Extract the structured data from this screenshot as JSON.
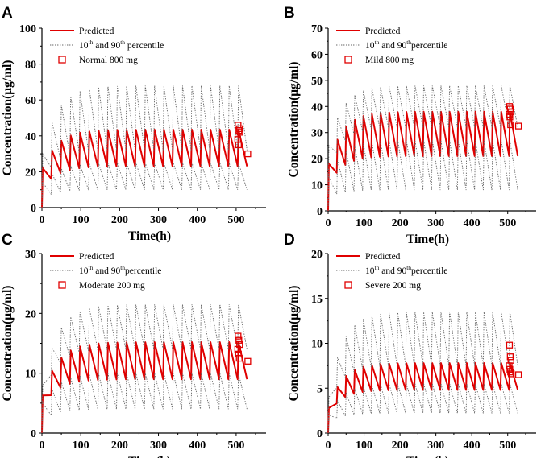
{
  "chart_data": [
    {
      "panel": "A",
      "type": "line",
      "title": "",
      "xlabel": "Time(h)",
      "ylabel": "Concentration(μg/ml)",
      "xlim": [
        0,
        550
      ],
      "ylim": [
        0,
        100
      ],
      "xticks": [
        0,
        100,
        200,
        300,
        400,
        500
      ],
      "yticks": [
        0,
        20,
        40,
        60,
        80,
        100
      ],
      "dosing_interval_h": 24,
      "doses": 22,
      "legend": {
        "predicted": "Predicted",
        "pct_pre": "10",
        "pct_mid": " and 90",
        "pct_post": " percentile",
        "observed": "Normal 800 mg"
      },
      "series": [
        {
          "name": "Predicted",
          "steady_peak": 43.5,
          "steady_trough": 23,
          "first_peak": 22,
          "first_trough": 10
        },
        {
          "name": "10th percentile",
          "steady_peak": 25,
          "steady_trough": 10,
          "first_peak": 14,
          "first_trough": 5
        },
        {
          "name": "90th percentile",
          "steady_peak": 68,
          "steady_trough": 32,
          "first_peak": 30,
          "first_trough": 14
        }
      ],
      "observed": [
        [
          505,
          46
        ],
        [
          507,
          43
        ],
        [
          509,
          44
        ],
        [
          504,
          38
        ],
        [
          506,
          35
        ],
        [
          510,
          42
        ],
        [
          530,
          30
        ]
      ]
    },
    {
      "panel": "B",
      "type": "line",
      "title": "",
      "xlabel": "Time(h)",
      "ylabel": "Concentration(μg/ml)",
      "xlim": [
        0,
        550
      ],
      "ylim": [
        0,
        70
      ],
      "xticks": [
        0,
        100,
        200,
        300,
        400,
        500
      ],
      "yticks": [
        0,
        10,
        20,
        30,
        40,
        50,
        60,
        70
      ],
      "dosing_interval_h": 24,
      "doses": 22,
      "legend": {
        "predicted": "Predicted",
        "pct_pre": "10",
        "pct_mid": " and 90",
        "pct_post": "percentile",
        "observed": "Mild 800 mg"
      },
      "series": [
        {
          "name": "Predicted",
          "steady_peak": 38,
          "steady_trough": 21,
          "first_peak": 18,
          "first_trough": 9
        },
        {
          "name": "10th percentile",
          "steady_peak": 27,
          "steady_trough": 8,
          "first_peak": 13,
          "first_trough": 5
        },
        {
          "name": "90th percentile",
          "steady_peak": 48,
          "steady_trough": 32,
          "first_peak": 25,
          "first_trough": 14
        }
      ],
      "observed": [
        [
          505,
          40
        ],
        [
          507,
          39
        ],
        [
          509,
          38
        ],
        [
          504,
          37
        ],
        [
          506,
          36
        ],
        [
          508,
          33
        ],
        [
          530,
          32.5
        ]
      ]
    },
    {
      "panel": "C",
      "type": "line",
      "title": "",
      "xlabel": "Time(h)",
      "ylabel": "Concentration(μg/ml)",
      "xlim": [
        0,
        550
      ],
      "ylim": [
        0,
        30
      ],
      "xticks": [
        0,
        100,
        200,
        300,
        400,
        500
      ],
      "yticks": [
        0,
        10,
        20,
        30
      ],
      "dosing_interval_h": 24,
      "doses": 22,
      "legend": {
        "predicted": "Predicted",
        "pct_pre": "10",
        "pct_mid": " and 90",
        "pct_post": "percentile",
        "observed": "Moderate 200 mg"
      },
      "series": [
        {
          "name": "Predicted",
          "steady_peak": 15.2,
          "steady_trough": 9,
          "first_peak": 6.3,
          "first_trough": 4
        },
        {
          "name": "10th percentile",
          "steady_peak": 10,
          "steady_trough": 4,
          "first_peak": 5,
          "first_trough": 2
        },
        {
          "name": "90th percentile",
          "steady_peak": 21.5,
          "steady_trough": 14,
          "first_peak": 8,
          "first_trough": 6
        }
      ],
      "observed": [
        [
          505,
          16.2
        ],
        [
          507,
          15.5
        ],
        [
          509,
          14.8
        ],
        [
          504,
          14
        ],
        [
          506,
          13.2
        ],
        [
          508,
          12.5
        ],
        [
          530,
          12
        ]
      ]
    },
    {
      "panel": "D",
      "type": "line",
      "title": "",
      "xlabel": "Time(h)",
      "ylabel": "Concentration(μg/ml)",
      "xlim": [
        0,
        550
      ],
      "ylim": [
        0,
        20
      ],
      "xticks": [
        0,
        100,
        200,
        300,
        400,
        500
      ],
      "yticks": [
        0,
        5,
        10,
        15,
        20
      ],
      "dosing_interval_h": 24,
      "doses": 22,
      "legend": {
        "predicted": "Predicted",
        "pct_pre": "10",
        "pct_mid": " and 90",
        "pct_post": "percentile",
        "observed": "Severe 200 mg"
      },
      "series": [
        {
          "name": "Predicted",
          "steady_peak": 7.8,
          "steady_trough": 4.8,
          "first_peak": 2.8,
          "first_trough": 2
        },
        {
          "name": "10th percentile",
          "steady_peak": 5.5,
          "steady_trough": 2.2,
          "first_peak": 2,
          "first_trough": 1.2
        },
        {
          "name": "90th percentile",
          "steady_peak": 13.5,
          "steady_trough": 7.5,
          "first_peak": 4,
          "first_trough": 3
        }
      ],
      "observed": [
        [
          505,
          9.8
        ],
        [
          507,
          8.5
        ],
        [
          509,
          8.1
        ],
        [
          504,
          7.5
        ],
        [
          506,
          7.1
        ],
        [
          508,
          6.8
        ],
        [
          510,
          6.6
        ],
        [
          530,
          6.5
        ]
      ]
    }
  ],
  "labels": {
    "superscript": "th"
  }
}
